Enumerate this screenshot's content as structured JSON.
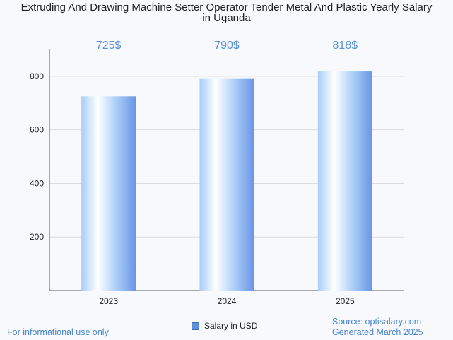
{
  "chart_data": {
    "type": "bar",
    "title_line1": "Extruding And Drawing Machine Setter Operator Tender Metal And Plastic Yearly Salary",
    "title_line2": "in Uganda",
    "categories": [
      "2023",
      "2024",
      "2025"
    ],
    "series": [
      {
        "name": "Salary in USD",
        "values": [
          725,
          790,
          818
        ]
      }
    ],
    "data_labels": [
      "725$",
      "790$",
      "818$"
    ],
    "yticks": [
      200,
      400,
      600,
      800
    ],
    "ylim": [
      0,
      900
    ],
    "grid": true,
    "legend_position": "bottom"
  },
  "footer": {
    "note": "For informational use only",
    "source": "Source: optisalary.com",
    "generated": "Generated March 2025"
  },
  "colors": {
    "bar_light": "#ffffff",
    "bar_mid": "#a9cdf7",
    "bar_dark": "#6a95e6",
    "label": "#5b92d8",
    "grid": "#dddddd",
    "axis": "#555555"
  }
}
